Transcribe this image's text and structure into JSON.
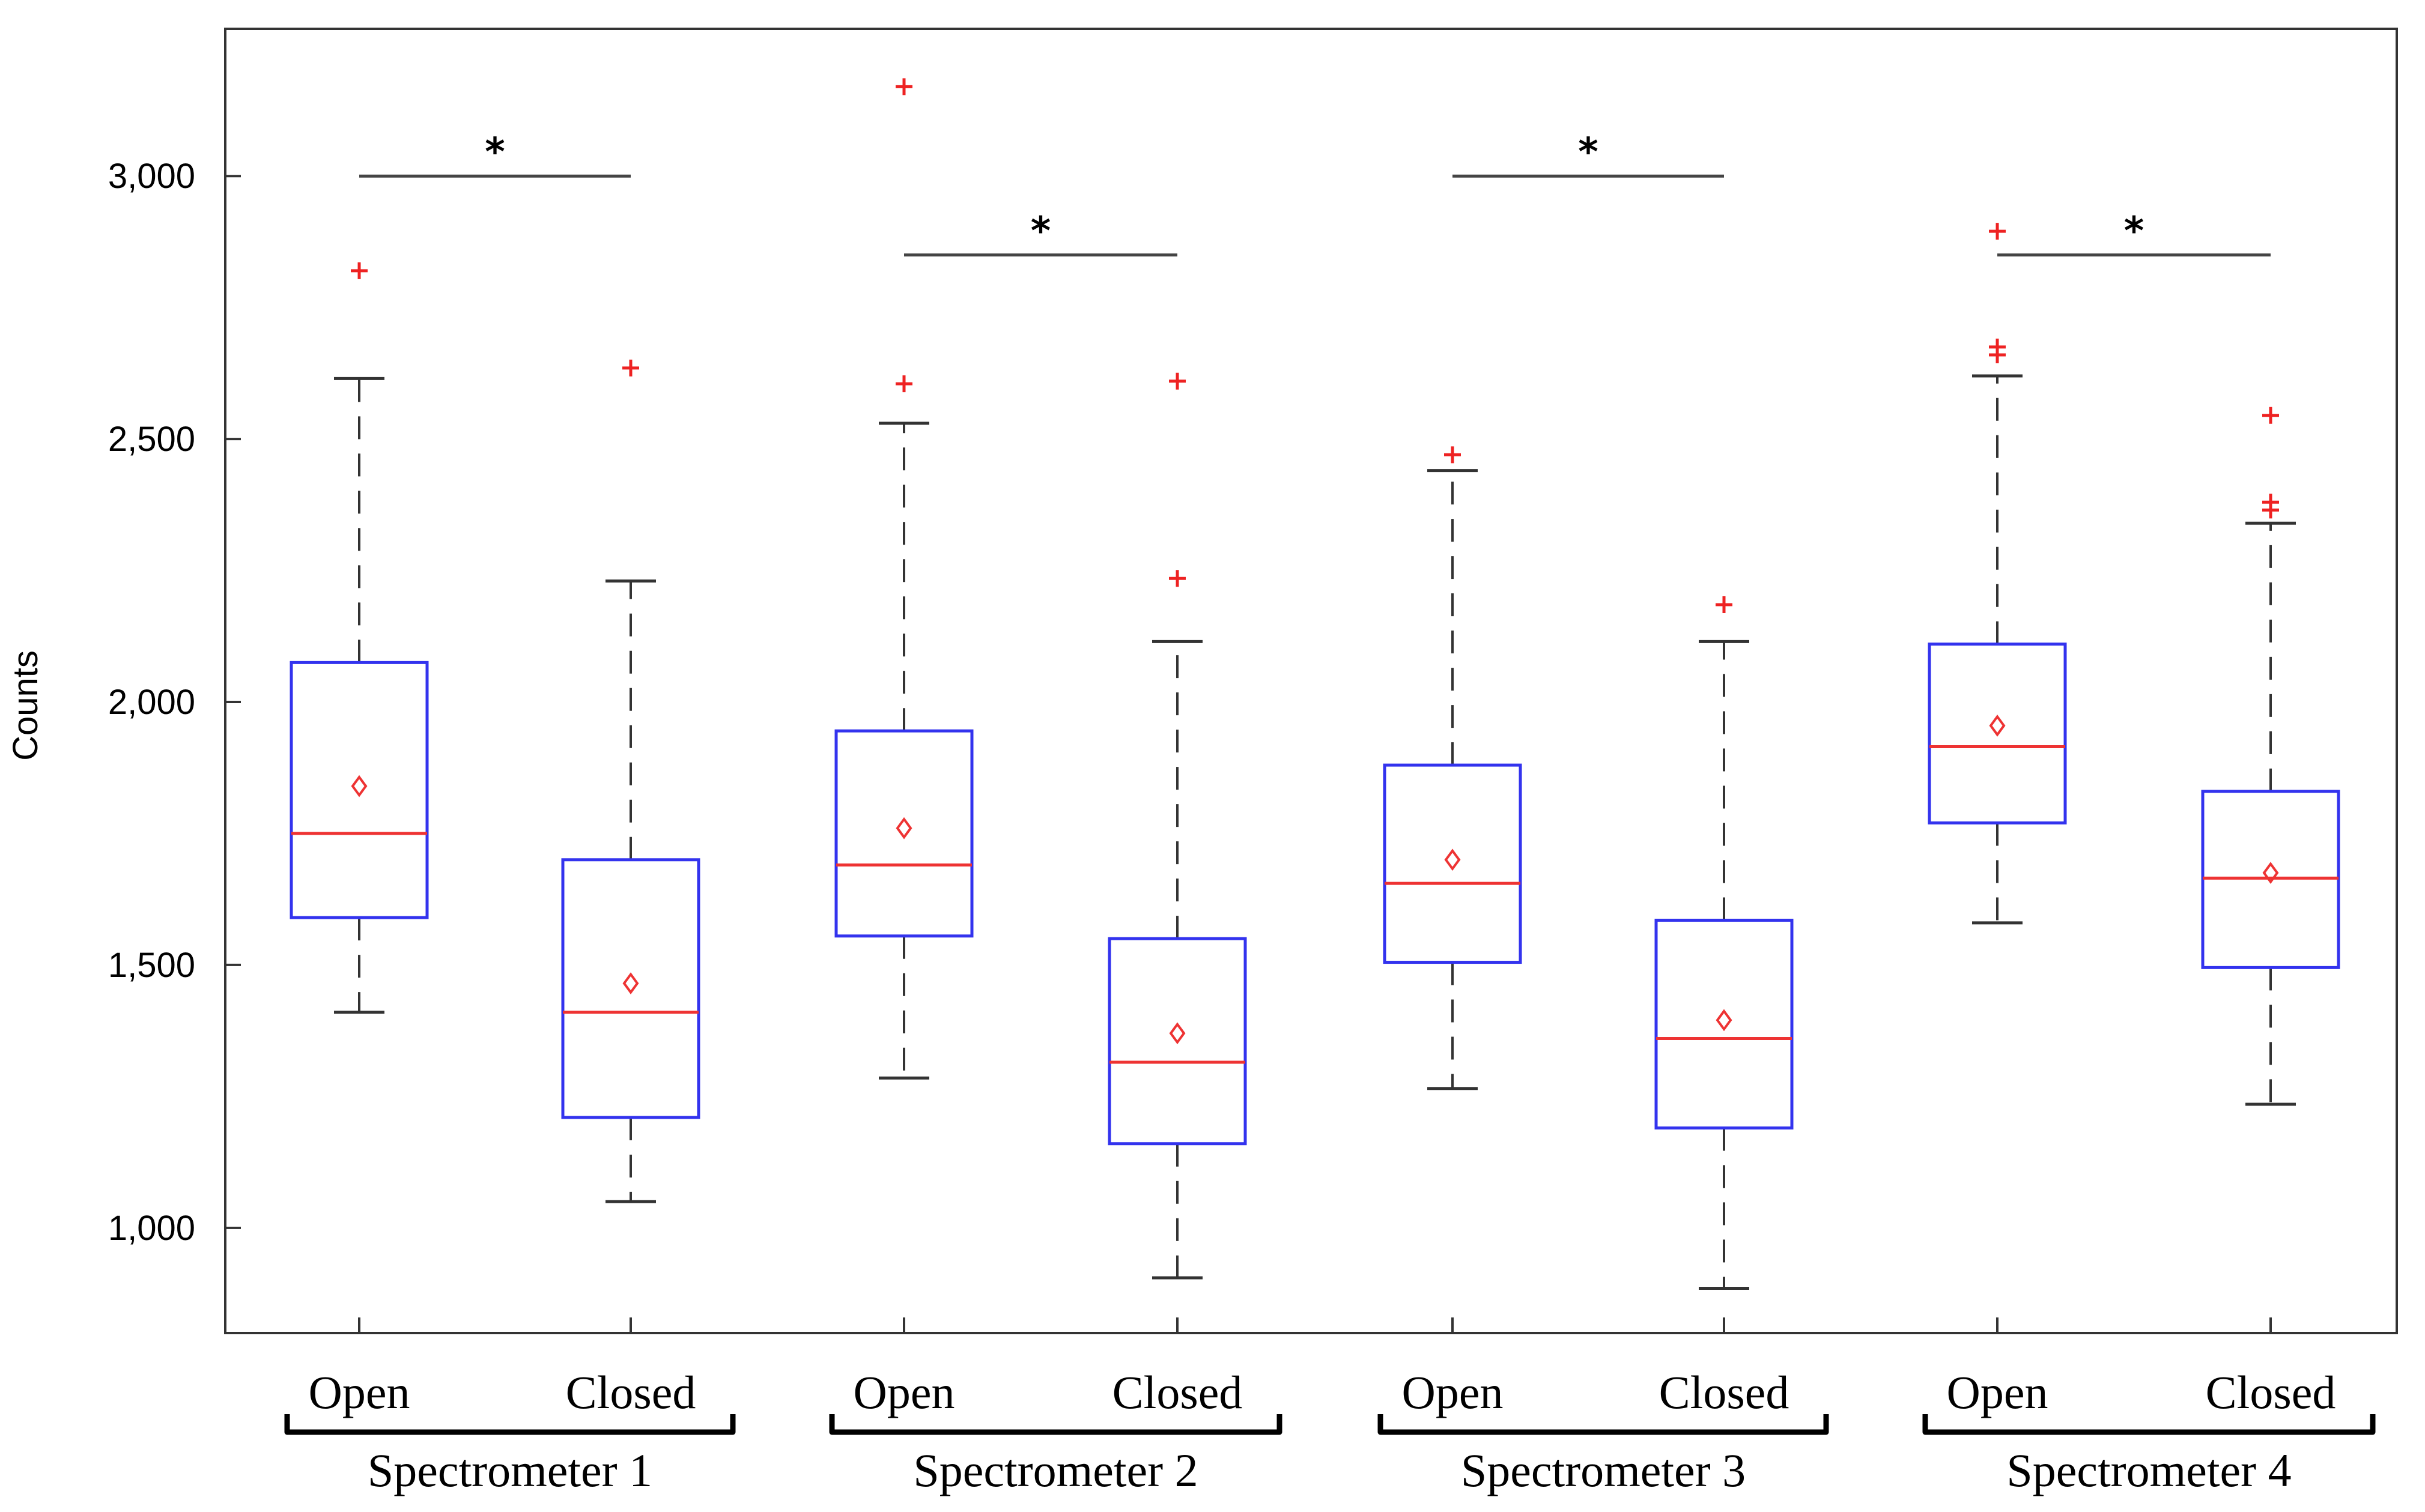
{
  "chart_data": {
    "type": "box",
    "ylabel": "Counts",
    "ylim": [
      800,
      3280
    ],
    "yticks": [
      1000,
      1500,
      2000,
      2500,
      3000
    ],
    "ytick_labels": [
      "1,000",
      "1,500",
      "2,000",
      "2,500",
      "3,000"
    ],
    "categories": [
      "Open",
      "Closed",
      "Open",
      "Closed",
      "Open",
      "Closed",
      "Open",
      "Closed"
    ],
    "groups": [
      "Spectrometer 1",
      "Spectrometer 2",
      "Spectrometer 3",
      "Spectrometer 4"
    ],
    "boxes": [
      {
        "group": "Spectrometer 1",
        "label": "Open",
        "whisker_low": 1410,
        "q1": 1590,
        "median": 1750,
        "q3": 2075,
        "whisker_high": 2615,
        "mean": 1840,
        "outliers": [
          2820
        ]
      },
      {
        "group": "Spectrometer 1",
        "label": "Closed",
        "whisker_low": 1050,
        "q1": 1210,
        "median": 1410,
        "q3": 1700,
        "whisker_high": 2230,
        "mean": 1465,
        "outliers": [
          2635
        ]
      },
      {
        "group": "Spectrometer 2",
        "label": "Open",
        "whisker_low": 1285,
        "q1": 1555,
        "median": 1690,
        "q3": 1945,
        "whisker_high": 2530,
        "mean": 1760,
        "outliers": [
          2605,
          3170
        ]
      },
      {
        "group": "Spectrometer 2",
        "label": "Closed",
        "whisker_low": 905,
        "q1": 1160,
        "median": 1315,
        "q3": 1550,
        "whisker_high": 2115,
        "mean": 1370,
        "outliers": [
          2235,
          2610
        ]
      },
      {
        "group": "Spectrometer 3",
        "label": "Open",
        "whisker_low": 1265,
        "q1": 1505,
        "median": 1655,
        "q3": 1880,
        "whisker_high": 2440,
        "mean": 1700,
        "outliers": [
          2470
        ]
      },
      {
        "group": "Spectrometer 3",
        "label": "Closed",
        "whisker_low": 885,
        "q1": 1190,
        "median": 1360,
        "q3": 1585,
        "whisker_high": 2115,
        "mean": 1395,
        "outliers": [
          2185
        ]
      },
      {
        "group": "Spectrometer 4",
        "label": "Open",
        "whisker_low": 1580,
        "q1": 1770,
        "median": 1915,
        "q3": 2110,
        "whisker_high": 2620,
        "mean": 1955,
        "outliers": [
          2660,
          2675,
          2895
        ]
      },
      {
        "group": "Spectrometer 4",
        "label": "Closed",
        "whisker_low": 1235,
        "q1": 1495,
        "median": 1665,
        "q3": 1830,
        "whisker_high": 2340,
        "mean": 1675,
        "outliers": [
          2365,
          2380,
          2545
        ]
      }
    ],
    "significance": [
      {
        "from_box": 0,
        "to_box": 1,
        "y": 3000,
        "label": "*"
      },
      {
        "from_box": 2,
        "to_box": 3,
        "y": 2850,
        "label": "*"
      },
      {
        "from_box": 4,
        "to_box": 5,
        "y": 3000,
        "label": "*"
      },
      {
        "from_box": 6,
        "to_box": 7,
        "y": 2850,
        "label": "*"
      }
    ],
    "colors": {
      "box": "#3333ee",
      "median": "#ee3333",
      "mean_marker": "#ee3333",
      "outlier": "#ee2222",
      "whisker": "#333333"
    },
    "grid": false,
    "legend": "none"
  }
}
